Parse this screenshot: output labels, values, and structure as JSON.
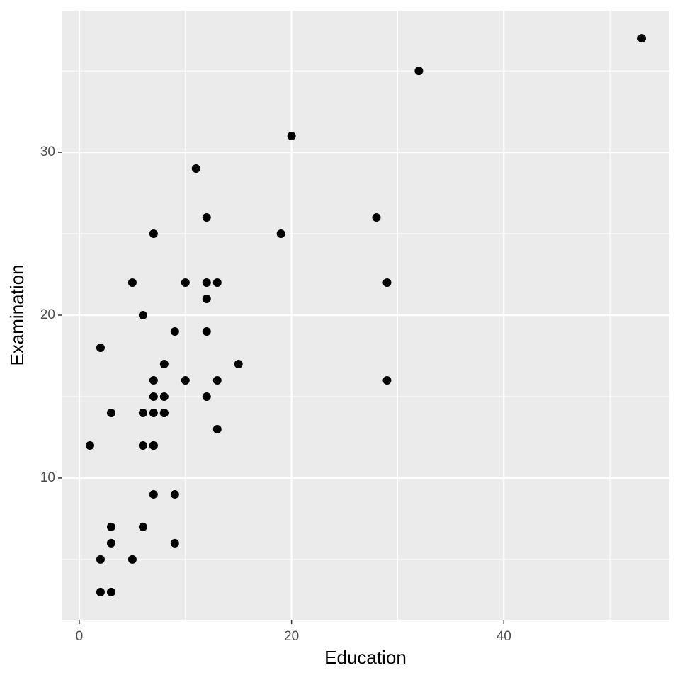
{
  "chart_data": {
    "type": "scatter",
    "x_label": "Education",
    "y_label": "Examination",
    "x": [
      12,
      9,
      5,
      7,
      15,
      7,
      7,
      8,
      7,
      13,
      6,
      12,
      7,
      12,
      5,
      2,
      8,
      28,
      20,
      9,
      10,
      3,
      12,
      6,
      1,
      8,
      3,
      10,
      19,
      8,
      2,
      6,
      2,
      6,
      3,
      9,
      3,
      13,
      12,
      11,
      13,
      32,
      7,
      7,
      53,
      29,
      29
    ],
    "series": [
      {
        "name": "Examination",
        "color": "#000000",
        "values": [
          15,
          6,
          5,
          12,
          17,
          9,
          16,
          14,
          12,
          16,
          14,
          21,
          14,
          19,
          22,
          18,
          17,
          26,
          31,
          19,
          22,
          14,
          22,
          20,
          12,
          14,
          6,
          16,
          25,
          15,
          3,
          7,
          5,
          12,
          7,
          9,
          3,
          13,
          26,
          29,
          22,
          35,
          15,
          25,
          37,
          16,
          22
        ]
      }
    ],
    "xlim": [
      -1.6,
      55.6
    ],
    "xticks": [
      0,
      20,
      40
    ],
    "xminor": [
      10,
      30,
      50
    ],
    "ylim": [
      1.3,
      38.7
    ],
    "yticks": [
      10,
      20,
      30
    ],
    "yminor": [
      5,
      15,
      25,
      35
    ],
    "grid": true,
    "panel_color": "#ebebeb",
    "grid_color": "#ffffff"
  }
}
